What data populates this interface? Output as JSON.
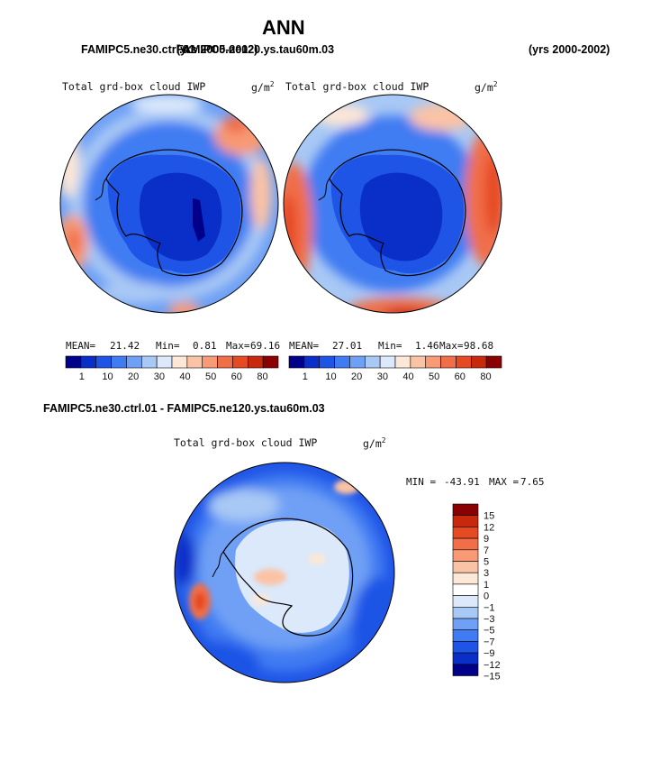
{
  "figure": {
    "title": "ANN",
    "case_left": "FAMIPC5.ne30.ctrl.01",
    "case_right": "FAMIPC5.ne120.ys.tau60m.03",
    "years_left": "(yrs 2000-2002)",
    "years_right": "(yrs 2000-2002)",
    "diff_header": "FAMIPC5.ne30.ctrl.01 - FAMIPC5.ne120.ys.tau60m.03"
  },
  "chart_data": [
    {
      "type": "heatmap",
      "projection": "polar-stereographic-south",
      "title": "Total grd-box cloud IWP",
      "units": "g/m",
      "units_sup": "2",
      "stats": {
        "mean_label": "MEAN=",
        "mean": "21.42",
        "min_label": "Min=",
        "min": "0.81",
        "max_label": "Max=",
        "max": "69.16"
      },
      "colorbar": {
        "orientation": "horizontal",
        "levels": [
          "1",
          "10",
          "20",
          "30",
          "40",
          "50",
          "60",
          "80"
        ],
        "colors": [
          "#00008b",
          "#0a2fc8",
          "#1f55e6",
          "#3f7bf2",
          "#6fa0f5",
          "#a8c8f5",
          "#dbe9fb",
          "#fde7d6",
          "#fbc3a5",
          "#f89a75",
          "#f06e48",
          "#e64a22",
          "#c8280c",
          "#8b0000"
        ]
      }
    },
    {
      "type": "heatmap",
      "projection": "polar-stereographic-south",
      "title": "Total grd-box cloud IWP",
      "units": "g/m",
      "units_sup": "2",
      "stats": {
        "mean_label": "MEAN=",
        "mean": "27.01",
        "min_label": "Min=",
        "min": "1.46",
        "max_label": "Max=",
        "max": "98.68"
      },
      "colorbar": {
        "orientation": "horizontal",
        "levels": [
          "1",
          "10",
          "20",
          "30",
          "40",
          "50",
          "60",
          "80"
        ],
        "colors": [
          "#00008b",
          "#0a2fc8",
          "#1f55e6",
          "#3f7bf2",
          "#6fa0f5",
          "#a8c8f5",
          "#dbe9fb",
          "#fde7d6",
          "#fbc3a5",
          "#f89a75",
          "#f06e48",
          "#e64a22",
          "#c8280c",
          "#8b0000"
        ]
      }
    },
    {
      "type": "heatmap",
      "projection": "polar-stereographic-south",
      "title": "Total grd-box cloud IWP",
      "units": "g/m",
      "units_sup": "2",
      "stats": {
        "min_label": "MIN =",
        "min": "-43.91",
        "max_label": "MAX =",
        "max": "7.65"
      },
      "colorbar": {
        "orientation": "vertical",
        "levels": [
          "15",
          "12",
          "9",
          "7",
          "5",
          "3",
          "1",
          "0",
          "−1",
          "−3",
          "−5",
          "−7",
          "−9",
          "−12",
          "−15"
        ],
        "colors": [
          "#8b0000",
          "#c8280c",
          "#e64a22",
          "#f06e48",
          "#f89a75",
          "#fbc3a5",
          "#fde7d6",
          "#ffffff",
          "#dbe9fb",
          "#a8c8f5",
          "#6fa0f5",
          "#3f7bf2",
          "#1f55e6",
          "#0a2fc8",
          "#00008b"
        ]
      }
    }
  ]
}
